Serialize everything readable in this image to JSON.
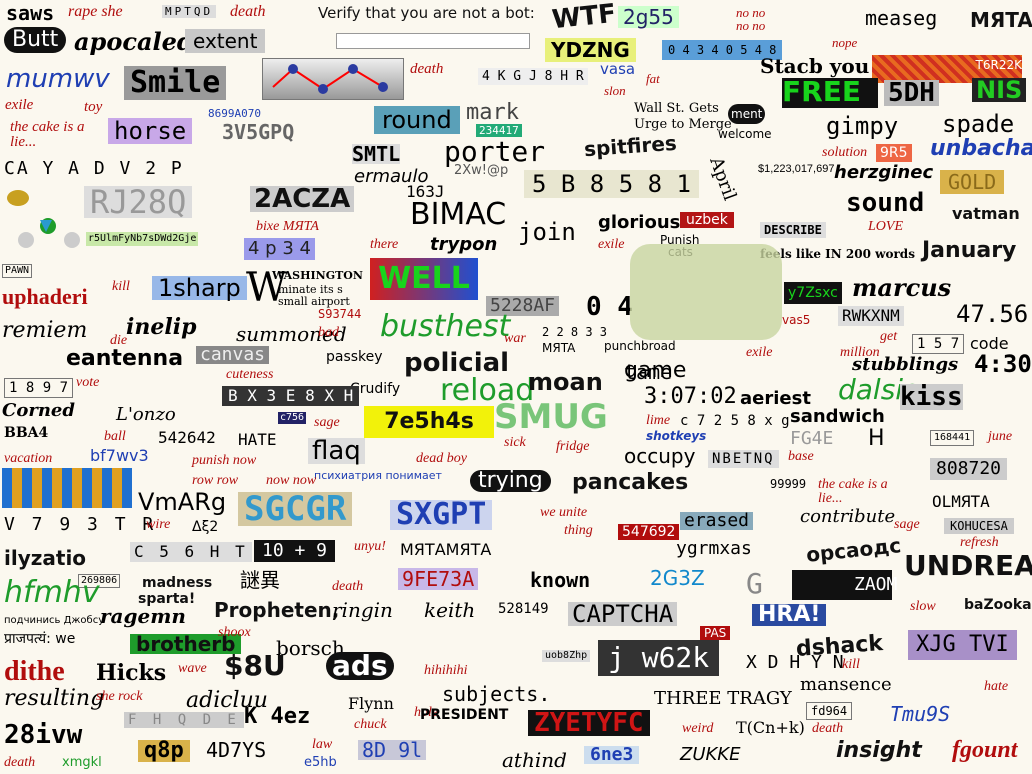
{
  "prompt": {
    "text": "Verify that you are not a bot:",
    "input_value": ""
  },
  "words": [
    "saws",
    "rape she",
    "MPTQD",
    "death",
    "WTF",
    "2g55",
    "no no no no",
    "nope",
    "measeg",
    "MЯTA",
    "Butt",
    "apocaled",
    "extent",
    "YDZNG",
    "0 4 3 4 0 5 4 8",
    "Stacb you",
    "T6R22K",
    "Smile",
    "8699A070",
    "death",
    "4 K G J 8 H R",
    "vasa",
    "slon",
    "fat",
    "FREE",
    "5DH",
    "NIS",
    "exile",
    "toy",
    "the cake is a lie...",
    "horse",
    "3V5GPQ",
    "round",
    "mark",
    "234417",
    "Wall St. Gets",
    "Urge to Merge",
    "ment",
    "welcome",
    "gimpy",
    "spade",
    "CA Y A D V 2 P",
    "SMTL",
    "porter",
    "spitfires",
    "solution",
    "9R5",
    "unbachar",
    "ermaulo",
    "2Xw!@p",
    "$1,223,017,697",
    "herzginec",
    "GOLD",
    "RJ28Q",
    "2ACZA",
    "163J",
    "BIMAC",
    "5 B 8 5 8 1",
    "April",
    "sound",
    "vatman",
    "r5UlmFyNb7sDWd2Gje",
    "bixe MЯTA",
    "join",
    "glorious",
    "uzbek",
    "DESCRIBE",
    "LOVE",
    "feels like IN 200 words",
    "4 p 3 4",
    "there",
    "trypon",
    "exile",
    "Punish",
    "cats",
    "January",
    "PAWN",
    "kill",
    "uphaderi",
    "WELL",
    "WASHINGTON",
    "minate its s",
    "small airport",
    "S93744",
    "1sharp",
    "5228AF",
    "0 4",
    "y7Zsxc",
    "marcus",
    "remiem",
    "inelip",
    "summoned",
    "bad",
    "busthest",
    "war",
    "2 2 8 3 3",
    "MЯTA",
    "punchbroad",
    "vas5",
    "RWKXNM",
    "47.56",
    "canvas",
    "eantenna",
    "die",
    "passkey",
    "policial",
    "exile",
    "game",
    "get",
    "million",
    "1 5 7",
    "code",
    "4:30",
    "cuteness",
    "reload",
    "Crudify",
    "moan",
    "tame",
    "aeriest",
    "dalsis",
    "stubblings",
    "1 8 9 7",
    "vote",
    "B X 3 E 8 X H",
    "Corned",
    "L'onzo",
    "sage",
    "7e5h4s",
    "SMUG",
    "3:07:02",
    "sandwich",
    "kiss",
    "c756",
    "flaq",
    "lime",
    "c 7 2 5 8 x g",
    "FG4E",
    "H",
    "168441",
    "june",
    "ball",
    "542642",
    "HATE",
    "sick",
    "fridge",
    "shotkeys",
    "occupy",
    "NBEТNQ",
    "base",
    "808720",
    "bf7wv3",
    "vacation",
    "punish now",
    "dead boy",
    "психиатрия понимает",
    "trying",
    "pancakes",
    "99999",
    "the cake is a lie...",
    "row row",
    "now now",
    "VmARg",
    "SGCGR",
    "SXGPT",
    "we unite",
    "thing",
    "547692",
    "erased",
    "contribute",
    "OLMЯTA",
    "V 7 9 3 T R",
    "wire",
    "Δξ2",
    "sage",
    "KOHUCESA",
    "C 5 6 H T",
    "10 + 9",
    "unyu!",
    "МЯТАМЯТА",
    "ygrmxas",
    "орсаодс",
    "refresh",
    "ilyzatio",
    "269806",
    "madness",
    "sparta!",
    "謎異",
    "death",
    "9FE73A",
    "known",
    "2G3Z",
    "G",
    "ZAOM",
    "UNDREAM",
    "hfmhv",
    "подчинись Джобсу",
    "ragemn",
    "Propheten,",
    "ringin",
    "keith",
    "528149",
    "CAPTCHA",
    "HRA!",
    "slow",
    "baZooka",
    "प्राजपत्यं: we",
    "brotherb",
    "shoox",
    "borsch",
    "PAS",
    "dshack",
    "kill",
    "XJG TVI",
    "dithe",
    "Hicks",
    "wave",
    "$8U",
    "ads",
    "hihihihi",
    "uob8Zhp",
    "j w62k",
    "X D H Y N",
    "mansence",
    "hate",
    "resulting",
    "she rock",
    "adicluu",
    "subjects.",
    "hole",
    "THREE TRAGY",
    "fd964",
    "Tmu9S",
    "28ivw",
    "F H Q D E",
    "K 4ez",
    "Flynn",
    "PRESIDENT",
    "ZYETYFC",
    "weird",
    "T(Cn+k)",
    "death",
    "chuck",
    "death",
    "xmgkl",
    "q8p",
    "4D7YS",
    "law",
    "e5hb",
    "8D 9l",
    "athind",
    "6ne3",
    "ZUKKE",
    "insight",
    "fgount"
  ],
  "colors": {
    "accent_red": "#b10d0d",
    "accent_blue": "#1f3fb3",
    "accent_green": "#1e9c2b",
    "free_green": "#18d41c"
  },
  "icons": [
    "teapot-icon",
    "molecule-icon",
    "dice-icon",
    "arrow-icon"
  ]
}
